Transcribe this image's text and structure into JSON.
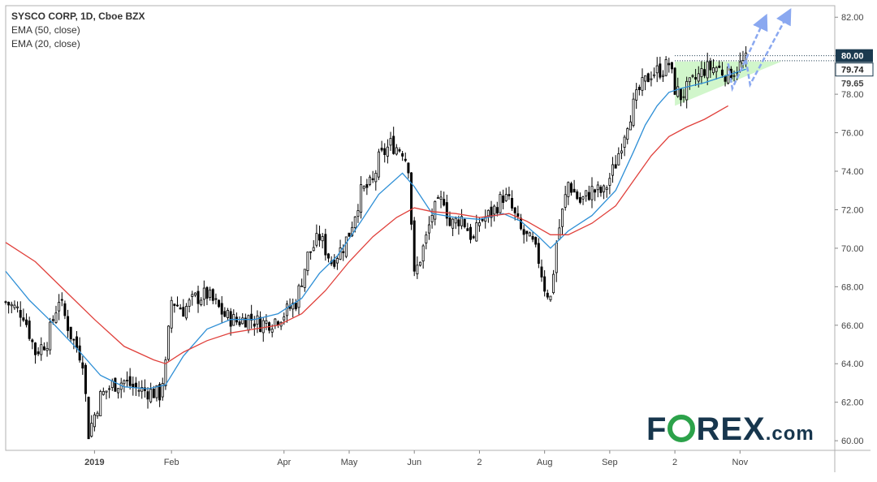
{
  "legend": {
    "title": "SYSCO CORP, 1D, Cboe BZX",
    "ema50_label": "EMA (50, close)",
    "ema20_label": "EMA (20, close)"
  },
  "colors": {
    "up_candle": "#ffffff",
    "down_candle": "#000000",
    "candle_outline": "#000000",
    "ema20": "#2e8fd6",
    "ema50": "#e0403b",
    "triangle_fill": "#c9f5c2",
    "arrow": "#8aa8f0",
    "price_tag_bg": "#1b3a4f",
    "logo": "#17364d",
    "logo_o": "#2ca24a"
  },
  "price_tags": {
    "high": "80.00",
    "close": "79.74",
    "ema_level": "79.65"
  },
  "logo": {
    "part1": "F",
    "part2": "REX",
    "suffix": ".com"
  },
  "chart_data": {
    "type": "candlestick",
    "title": "SYSCO CORP, 1D, Cboe BZX",
    "ylim": [
      59.5,
      82.6
    ],
    "y_ticks": [
      60,
      62,
      64,
      66,
      68,
      70,
      72,
      74,
      76,
      78,
      80,
      82
    ],
    "x_tick_labels": [
      {
        "label": "2019",
        "index": 15
      },
      {
        "label": "Feb",
        "index": 28
      },
      {
        "label": "Apr",
        "index": 47
      },
      {
        "label": "May",
        "index": 58
      },
      {
        "label": "Jun",
        "index": 69
      },
      {
        "label": "2",
        "index": 80
      },
      {
        "label": "Aug",
        "index": 91
      },
      {
        "label": "Sep",
        "index": 102
      },
      {
        "label": "2",
        "index": 113
      },
      {
        "label": "Nov",
        "index": 124
      }
    ],
    "x_range": [
      0,
      140
    ],
    "close_path": [
      [
        0,
        67.2
      ],
      [
        3,
        66.6
      ],
      [
        5,
        64.6
      ],
      [
        7,
        65.2
      ],
      [
        9,
        67.4
      ],
      [
        11,
        65.5
      ],
      [
        13,
        64.2
      ],
      [
        14,
        60.4
      ],
      [
        16,
        62.3
      ],
      [
        18,
        62.9
      ],
      [
        20,
        63.1
      ],
      [
        22,
        62.7
      ],
      [
        25,
        62.5
      ],
      [
        26,
        62.4
      ],
      [
        27,
        63.9
      ],
      [
        28,
        67.3
      ],
      [
        30,
        66.8
      ],
      [
        32,
        67.4
      ],
      [
        34,
        67.6
      ],
      [
        37,
        66.5
      ],
      [
        39,
        66.2
      ],
      [
        41,
        66.4
      ],
      [
        43,
        66.1
      ],
      [
        45,
        66.2
      ],
      [
        47,
        66.6
      ],
      [
        49,
        67.2
      ],
      [
        51,
        69.6
      ],
      [
        53,
        70.6
      ],
      [
        55,
        69.3
      ],
      [
        57,
        70.1
      ],
      [
        58,
        70.8
      ],
      [
        60,
        72.9
      ],
      [
        62,
        73.4
      ],
      [
        63,
        74.6
      ],
      [
        65,
        75.4
      ],
      [
        67,
        75.1
      ],
      [
        68,
        74.3
      ],
      [
        69,
        68.5
      ],
      [
        71,
        70.5
      ],
      [
        72,
        71.8
      ],
      [
        74,
        72.6
      ],
      [
        75,
        71.2
      ],
      [
        77,
        71.6
      ],
      [
        79,
        70.4
      ],
      [
        80,
        71.4
      ],
      [
        82,
        71.8
      ],
      [
        84,
        72.7
      ],
      [
        85,
        72.4
      ],
      [
        87,
        70.9
      ],
      [
        89,
        70.2
      ],
      [
        90,
        69.4
      ],
      [
        91,
        68.0
      ],
      [
        92,
        67.4
      ],
      [
        93,
        70.3
      ],
      [
        95,
        73.4
      ],
      [
        97,
        72.4
      ],
      [
        99,
        73.0
      ],
      [
        101,
        72.9
      ],
      [
        103,
        74.4
      ],
      [
        105,
        76.6
      ],
      [
        107,
        78.2
      ],
      [
        109,
        79.1
      ],
      [
        111,
        79.3
      ],
      [
        112,
        79.6
      ],
      [
        113,
        78.3
      ],
      [
        114,
        77.9
      ],
      [
        116,
        78.6
      ],
      [
        118,
        79.3
      ],
      [
        120,
        79.4
      ],
      [
        122,
        79.0
      ],
      [
        124,
        79.5
      ],
      [
        125,
        79.74
      ]
    ],
    "series": [
      {
        "name": "EMA (20, close)",
        "points": [
          [
            0,
            68.8
          ],
          [
            4,
            67.3
          ],
          [
            8,
            66.1
          ],
          [
            12,
            64.8
          ],
          [
            16,
            63.4
          ],
          [
            20,
            62.8
          ],
          [
            24,
            62.7
          ],
          [
            27,
            62.9
          ],
          [
            30,
            64.4
          ],
          [
            34,
            65.8
          ],
          [
            38,
            66.3
          ],
          [
            42,
            66.3
          ],
          [
            46,
            66.6
          ],
          [
            50,
            67.4
          ],
          [
            53,
            68.7
          ],
          [
            56,
            69.6
          ],
          [
            60,
            71.4
          ],
          [
            63,
            72.8
          ],
          [
            67,
            73.9
          ],
          [
            69,
            73.2
          ],
          [
            72,
            71.8
          ],
          [
            76,
            71.6
          ],
          [
            80,
            71.5
          ],
          [
            84,
            71.8
          ],
          [
            87,
            71.4
          ],
          [
            90,
            70.6
          ],
          [
            92,
            70.0
          ],
          [
            95,
            70.9
          ],
          [
            99,
            71.7
          ],
          [
            103,
            73.0
          ],
          [
            106,
            75.0
          ],
          [
            108,
            76.4
          ],
          [
            110,
            77.4
          ],
          [
            112,
            78.1
          ],
          [
            114,
            78.3
          ],
          [
            118,
            78.6
          ],
          [
            122,
            79.0
          ],
          [
            125,
            79.3
          ]
        ]
      },
      {
        "name": "EMA (50, close)",
        "points": [
          [
            0,
            70.3
          ],
          [
            5,
            69.3
          ],
          [
            10,
            67.8
          ],
          [
            15,
            66.3
          ],
          [
            20,
            64.9
          ],
          [
            25,
            64.2
          ],
          [
            27,
            64.0
          ],
          [
            30,
            64.6
          ],
          [
            34,
            65.2
          ],
          [
            38,
            65.6
          ],
          [
            42,
            65.8
          ],
          [
            46,
            66.0
          ],
          [
            50,
            66.6
          ],
          [
            54,
            67.8
          ],
          [
            58,
            69.3
          ],
          [
            62,
            70.6
          ],
          [
            66,
            71.6
          ],
          [
            69,
            72.1
          ],
          [
            72,
            71.9
          ],
          [
            76,
            71.8
          ],
          [
            80,
            71.6
          ],
          [
            85,
            71.8
          ],
          [
            88,
            71.4
          ],
          [
            92,
            70.7
          ],
          [
            95,
            70.7
          ],
          [
            99,
            71.3
          ],
          [
            103,
            72.2
          ],
          [
            106,
            73.5
          ],
          [
            109,
            74.8
          ],
          [
            112,
            75.8
          ],
          [
            115,
            76.3
          ],
          [
            118,
            76.7
          ],
          [
            122,
            77.4
          ]
        ]
      }
    ],
    "annotations": {
      "triangle": [
        [
          113,
          79.7
        ],
        [
          125,
          79.7
        ],
        [
          131,
          79.7
        ],
        [
          113,
          77.4
        ]
      ],
      "resistance_lines": [
        80.0,
        79.74
      ],
      "arrows": [
        {
          "from": [
            124,
            78.8
          ],
          "to": [
            128,
            81.8
          ]
        },
        {
          "from": [
            127,
            79.0
          ],
          "to": [
            132,
            82.1
          ]
        }
      ]
    }
  }
}
